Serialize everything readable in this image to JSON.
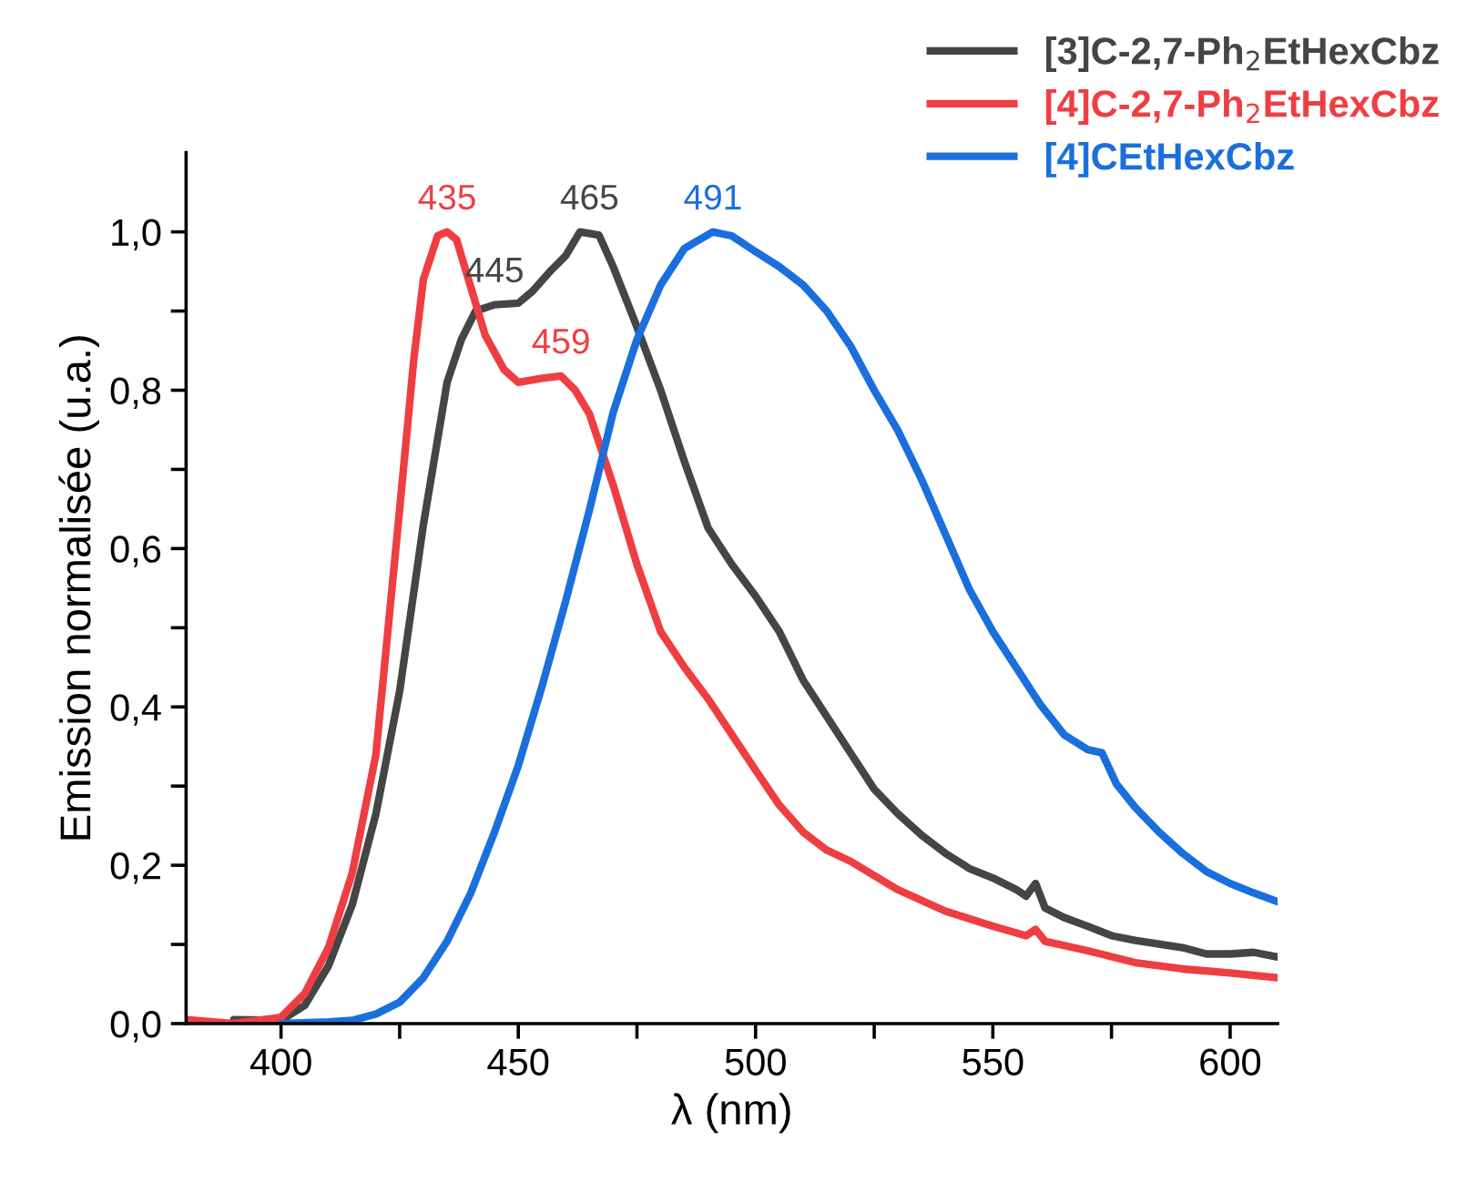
{
  "chart_data": {
    "type": "line",
    "xlabel": "λ (nm)",
    "ylabel": "Emission normalisée (u.a.)",
    "xlim": [
      380,
      610
    ],
    "ylim": [
      0,
      1.1
    ],
    "xticks": [
      400,
      {
        "value": 425,
        "label": null
      },
      450,
      {
        "value": 475,
        "label": null
      },
      500,
      {
        "value": 525,
        "label": null
      },
      550,
      {
        "value": 575,
        "label": null
      },
      600
    ],
    "yticks": [
      {
        "value": 0,
        "label": "0,0"
      },
      {
        "value": 0.1,
        "label": null
      },
      {
        "value": 0.2,
        "label": "0,2"
      },
      {
        "value": 0.3,
        "label": null
      },
      {
        "value": 0.4,
        "label": "0,4"
      },
      {
        "value": 0.5,
        "label": null
      },
      {
        "value": 0.6,
        "label": "0,6"
      },
      {
        "value": 0.7,
        "label": null
      },
      {
        "value": 0.8,
        "label": "0,8"
      },
      {
        "value": 0.9,
        "label": null
      },
      {
        "value": 1.0,
        "label": "1,0"
      }
    ],
    "grid": false,
    "legend": "top right",
    "marker": "none",
    "line_style": "solid",
    "series": [
      {
        "name": "[3]C-2,7-Ph$_{2}$EtHexCbz",
        "color": "#454545",
        "x": [
          390,
          400,
          405,
          410,
          415,
          420,
          425,
          430,
          435,
          438,
          441,
          445,
          450,
          453,
          457,
          460,
          463,
          467,
          470,
          475,
          480,
          485,
          490,
          495,
          500,
          505,
          510,
          515,
          520,
          525,
          530,
          535,
          540,
          545,
          550,
          555,
          557,
          559,
          561,
          565,
          570,
          575,
          580,
          590,
          595,
          600,
          605,
          610
        ],
        "values": [
          0.005,
          0.004,
          0.023,
          0.073,
          0.15,
          0.265,
          0.42,
          0.63,
          0.81,
          0.864,
          0.9,
          0.908,
          0.91,
          0.925,
          0.952,
          0.97,
          1.0,
          0.996,
          0.956,
          0.88,
          0.8,
          0.71,
          0.626,
          0.58,
          0.54,
          0.495,
          0.434,
          0.388,
          0.342,
          0.296,
          0.265,
          0.238,
          0.215,
          0.196,
          0.184,
          0.169,
          0.161,
          0.177,
          0.146,
          0.134,
          0.123,
          0.111,
          0.105,
          0.096,
          0.088,
          0.088,
          0.09,
          0.084
        ]
      },
      {
        "name": "[4]C-2,7-Ph$_{2}$EtHexCbz",
        "color": "#ef3e42",
        "x": [
          380,
          390,
          400,
          405,
          410,
          415,
          420,
          425,
          428,
          430,
          433,
          435,
          437,
          440,
          443,
          447,
          450,
          455,
          459,
          462,
          465,
          470,
          475,
          480,
          485,
          490,
          495,
          500,
          505,
          510,
          515,
          520,
          530,
          540,
          550,
          557,
          559,
          561,
          570,
          580,
          590,
          600,
          610
        ],
        "values": [
          0.005,
          0.0,
          0.008,
          0.038,
          0.096,
          0.19,
          0.34,
          0.65,
          0.84,
          0.94,
          0.995,
          1.0,
          0.99,
          0.93,
          0.87,
          0.826,
          0.81,
          0.815,
          0.818,
          0.8,
          0.77,
          0.68,
          0.58,
          0.495,
          0.45,
          0.41,
          0.365,
          0.32,
          0.276,
          0.242,
          0.219,
          0.205,
          0.169,
          0.142,
          0.123,
          0.111,
          0.119,
          0.104,
          0.092,
          0.077,
          0.069,
          0.064,
          0.058
        ]
      },
      {
        "name": "[4]CEtHexCbz",
        "color": "#1a6fdc",
        "x": [
          400,
          410,
          415,
          420,
          425,
          430,
          435,
          440,
          445,
          450,
          455,
          460,
          465,
          470,
          475,
          480,
          485,
          491,
          495,
          500,
          505,
          510,
          515,
          520,
          525,
          530,
          535,
          540,
          545,
          550,
          555,
          560,
          565,
          570,
          573,
          576,
          580,
          585,
          590,
          595,
          600,
          605,
          610
        ],
        "values": [
          0.0,
          0.002,
          0.004,
          0.012,
          0.027,
          0.058,
          0.104,
          0.165,
          0.242,
          0.326,
          0.426,
          0.534,
          0.649,
          0.772,
          0.864,
          0.933,
          0.979,
          1.0,
          0.995,
          0.975,
          0.956,
          0.933,
          0.9,
          0.856,
          0.8,
          0.749,
          0.687,
          0.618,
          0.549,
          0.495,
          0.449,
          0.403,
          0.365,
          0.346,
          0.342,
          0.303,
          0.273,
          0.242,
          0.215,
          0.192,
          0.177,
          0.165,
          0.154
        ]
      }
    ],
    "annotations": [
      {
        "text": "435",
        "x": 435,
        "y": 1.0
      },
      {
        "text": "445",
        "x": 445,
        "y": 0.908
      },
      {
        "text": "465",
        "x": 465,
        "y": 1.0
      },
      {
        "text": "459",
        "x": 459,
        "y": 0.818
      },
      {
        "text": "491",
        "x": 491,
        "y": 1.0
      }
    ]
  }
}
